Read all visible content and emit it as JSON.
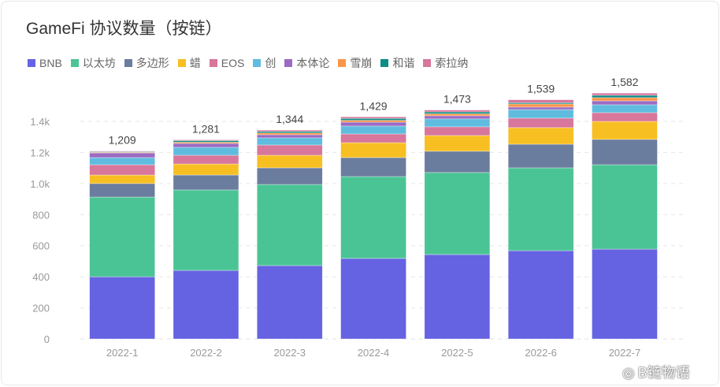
{
  "title": "GameFi 协议数量（按链）",
  "watermark": "B链物语",
  "chart_data": {
    "type": "bar",
    "stacked": true,
    "title": "GameFi 协议数量（按链）",
    "categories": [
      "2022-1",
      "2022-2",
      "2022-3",
      "2022-4",
      "2022-5",
      "2022-6",
      "2022-7"
    ],
    "totals": [
      "1,209",
      "1,281",
      "1,344",
      "1,429",
      "1,473",
      "1,539",
      "1,582"
    ],
    "ylim": [
      0,
      1600
    ],
    "yticks": [
      "0",
      "200",
      "400",
      "600",
      "800",
      "1.0k",
      "1.2k",
      "1.4k"
    ],
    "ytick_values": [
      0,
      200,
      400,
      600,
      800,
      1000,
      1200,
      1400
    ],
    "grid": true,
    "legend_position": "top-left",
    "series": [
      {
        "name": "BNB",
        "color": "#6563e2",
        "values": [
          400,
          441,
          472,
          518,
          543,
          568,
          578
        ]
      },
      {
        "name": "以太坊",
        "color": "#4bc495",
        "values": [
          513,
          518,
          522,
          527,
          528,
          533,
          543
        ]
      },
      {
        "name": "多边形",
        "color": "#6b7d9e",
        "values": [
          87,
          96,
          107,
          122,
          137,
          152,
          163
        ]
      },
      {
        "name": "蜡",
        "color": "#f7bf22",
        "values": [
          55,
          71,
          81,
          96,
          101,
          107,
          116
        ]
      },
      {
        "name": "EOS",
        "color": "#d8769b",
        "values": [
          66,
          56,
          66,
          56,
          56,
          61,
          56
        ]
      },
      {
        "name": "创",
        "color": "#60bcdf",
        "values": [
          46,
          51,
          46,
          51,
          51,
          55,
          51
        ]
      },
      {
        "name": "本体论",
        "color": "#9b6bc3",
        "values": [
          30,
          25,
          20,
          25,
          20,
          16,
          25
        ]
      },
      {
        "name": "雪崩",
        "color": "#f9964a",
        "values": [
          4,
          8,
          12,
          12,
          13,
          20,
          21
        ]
      },
      {
        "name": "和谐",
        "color": "#0f8c86",
        "values": [
          4,
          10,
          10,
          12,
          12,
          8,
          15
        ]
      },
      {
        "name": "索拉纳",
        "color": "#d8769b",
        "values": [
          4,
          5,
          8,
          10,
          12,
          19,
          14
        ]
      }
    ]
  }
}
